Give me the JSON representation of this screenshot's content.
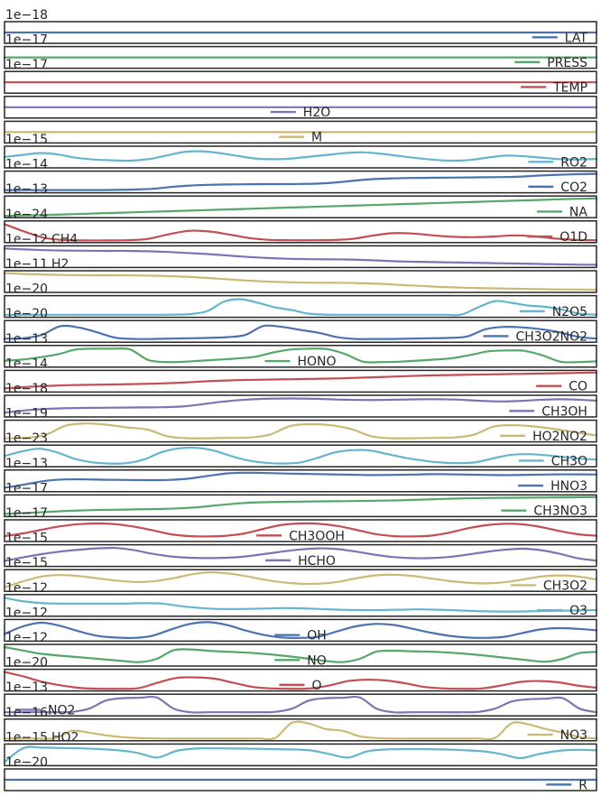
{
  "chart_data": {
    "type": "line",
    "xlim": [
      0,
      1
    ],
    "grid": false,
    "panels": [
      {
        "name": "LAT",
        "offset": "1e−18",
        "color": "#4c72b0",
        "legend_loc": "right",
        "y": [
          0.5,
          0.5
        ]
      },
      {
        "name": "PRESS",
        "offset": "1e−17",
        "color": "#55a868",
        "legend_loc": "right",
        "y": [
          0.5,
          0.5
        ]
      },
      {
        "name": "TEMP",
        "offset": "1e−17",
        "color": "#c44e52",
        "legend_loc": "right",
        "y": [
          0.5,
          0.5
        ]
      },
      {
        "name": "H2O",
        "offset": "",
        "color": "#8172b2",
        "legend_loc": "center",
        "y": [
          0.5,
          0.5
        ]
      },
      {
        "name": "M",
        "offset": "",
        "color": "#ccb974",
        "legend_loc": "center",
        "y": [
          0.5,
          0.5
        ]
      },
      {
        "name": "RO2",
        "offset": "1e−15",
        "color": "#64b5cd",
        "legend_loc": "right",
        "y": [
          0.5,
          0.62,
          0.72,
          0.64,
          0.46,
          0.36,
          0.32,
          0.3,
          0.38,
          0.58,
          0.78,
          0.82,
          0.72,
          0.56,
          0.42,
          0.38,
          0.42,
          0.52,
          0.62,
          0.72,
          0.76,
          0.68,
          0.56,
          0.44,
          0.34,
          0.3,
          0.34,
          0.48,
          0.58,
          0.54,
          0.46,
          0.38,
          0.36,
          0.4
        ]
      },
      {
        "name": "CO2",
        "offset": "1e−14",
        "color": "#4c72b0",
        "legend_loc": "right",
        "y": [
          0.05,
          0.05,
          0.05,
          0.05,
          0.05,
          0.05,
          0.06,
          0.08,
          0.12,
          0.22,
          0.3,
          0.34,
          0.36,
          0.37,
          0.38,
          0.38,
          0.39,
          0.41,
          0.48,
          0.58,
          0.66,
          0.7,
          0.72,
          0.73,
          0.74,
          0.75,
          0.76,
          0.77,
          0.8,
          0.86,
          0.9,
          0.93,
          0.95
        ]
      },
      {
        "name": "NA",
        "offset": "1e−13",
        "color": "#55a868",
        "legend_loc": "right",
        "y": [
          0.0,
          0.03,
          0.06,
          0.1,
          0.14,
          0.18,
          0.22,
          0.26,
          0.3,
          0.34,
          0.38,
          0.42,
          0.46,
          0.5,
          0.54,
          0.58,
          0.62,
          0.66,
          0.7,
          0.74,
          0.78,
          0.82,
          0.86,
          0.9,
          0.94,
          0.97
        ]
      },
      {
        "name": "O1D",
        "offset": "1e−24",
        "color": "#c44e52",
        "legend_loc": "right",
        "y": [
          0.92,
          0.5,
          0.15,
          0.04,
          0.02,
          0.02,
          0.03,
          0.1,
          0.35,
          0.55,
          0.52,
          0.35,
          0.15,
          0.05,
          0.03,
          0.03,
          0.04,
          0.1,
          0.28,
          0.42,
          0.4,
          0.3,
          0.22,
          0.2,
          0.24,
          0.3,
          0.24,
          0.12,
          0.05,
          0.03
        ]
      },
      {
        "name": "CH4",
        "offset": "1e−12",
        "color": "#8172b2",
        "legend_loc": "none",
        "y": [
          0.95,
          0.9,
          0.86,
          0.84,
          0.83,
          0.82,
          0.82,
          0.8,
          0.76,
          0.7,
          0.64,
          0.56,
          0.48,
          0.42,
          0.38,
          0.36,
          0.35,
          0.34,
          0.3,
          0.25,
          0.22,
          0.2,
          0.18,
          0.16,
          0.14,
          0.12,
          0.1,
          0.08,
          0.06,
          0.05
        ]
      },
      {
        "name": "H2",
        "offset": "1e−11",
        "color": "#ccb974",
        "legend_loc": "none",
        "y": [
          0.97,
          0.92,
          0.88,
          0.86,
          0.85,
          0.85,
          0.84,
          0.82,
          0.78,
          0.72,
          0.64,
          0.56,
          0.5,
          0.46,
          0.44,
          0.43,
          0.42,
          0.38,
          0.32,
          0.26,
          0.2,
          0.16,
          0.13,
          0.11,
          0.09,
          0.07,
          0.06,
          0.05
        ]
      },
      {
        "name": "N2O5",
        "offset": "1e−20",
        "color": "#64b5cd",
        "legend_loc": "right",
        "y": [
          0.04,
          0.04,
          0.04,
          0.04,
          0.04,
          0.04,
          0.04,
          0.04,
          0.04,
          0.04,
          0.05,
          0.08,
          0.25,
          0.78,
          0.9,
          0.7,
          0.45,
          0.3,
          0.1,
          0.05,
          0.04,
          0.04,
          0.04,
          0.04,
          0.04,
          0.04,
          0.04,
          0.05,
          0.45,
          0.8,
          0.7,
          0.55,
          0.48,
          0.32,
          0.1,
          0.05
        ]
      },
      {
        "name": "CH3O2NO2",
        "offset": "1e−20",
        "color": "#4c72b0",
        "legend_loc": "right",
        "y": [
          0.1,
          0.12,
          0.3,
          0.78,
          0.72,
          0.45,
          0.15,
          0.08,
          0.08,
          0.1,
          0.12,
          0.14,
          0.18,
          0.3,
          0.8,
          0.75,
          0.58,
          0.42,
          0.18,
          0.08,
          0.08,
          0.08,
          0.1,
          0.12,
          0.14,
          0.22,
          0.62,
          0.75,
          0.72,
          0.62,
          0.45,
          0.2,
          0.1
        ]
      },
      {
        "name": "HONO",
        "offset": "1e−13",
        "color": "#55a868",
        "legend_loc": "center",
        "y": [
          0.25,
          0.32,
          0.45,
          0.62,
          0.88,
          0.92,
          0.92,
          0.88,
          0.3,
          0.18,
          0.2,
          0.26,
          0.32,
          0.38,
          0.48,
          0.72,
          0.88,
          0.92,
          0.9,
          0.62,
          0.2,
          0.18,
          0.2,
          0.26,
          0.32,
          0.4,
          0.58,
          0.78,
          0.82,
          0.8,
          0.55,
          0.2,
          0.18,
          0.22
        ]
      },
      {
        "name": "CO",
        "offset": "1e−14",
        "color": "#c44e52",
        "legend_loc": "right",
        "y": [
          0.1,
          0.18,
          0.24,
          0.28,
          0.3,
          0.32,
          0.34,
          0.36,
          0.4,
          0.46,
          0.52,
          0.56,
          0.58,
          0.6,
          0.62,
          0.64,
          0.66,
          0.7,
          0.74,
          0.78,
          0.82,
          0.84,
          0.86,
          0.88,
          0.9,
          0.92,
          0.94,
          0.96,
          0.98
        ]
      },
      {
        "name": "CH3OH",
        "offset": "1e−18",
        "color": "#8172b2",
        "legend_loc": "right",
        "y": [
          0.14,
          0.26,
          0.34,
          0.38,
          0.4,
          0.41,
          0.42,
          0.43,
          0.44,
          0.48,
          0.6,
          0.74,
          0.84,
          0.9,
          0.92,
          0.92,
          0.9,
          0.86,
          0.84,
          0.84,
          0.86,
          0.88,
          0.88,
          0.86,
          0.8,
          0.76,
          0.78,
          0.84,
          0.88,
          0.86,
          0.8
        ]
      },
      {
        "name": "HO2NO2",
        "offset": "1e−19",
        "color": "#ccb974",
        "legend_loc": "right",
        "y": [
          0.1,
          0.12,
          0.28,
          0.8,
          0.92,
          0.85,
          0.7,
          0.58,
          0.2,
          0.1,
          0.1,
          0.12,
          0.14,
          0.3,
          0.78,
          0.88,
          0.82,
          0.6,
          0.2,
          0.1,
          0.1,
          0.12,
          0.14,
          0.3,
          0.76,
          0.82,
          0.75,
          0.6,
          0.42,
          0.25
        ]
      },
      {
        "name": "CH3O",
        "offset": "1e−23",
        "color": "#64b5cd",
        "legend_loc": "right",
        "y": [
          0.5,
          0.75,
          0.9,
          0.7,
          0.35,
          0.15,
          0.08,
          0.1,
          0.3,
          0.7,
          0.92,
          0.95,
          0.8,
          0.5,
          0.25,
          0.12,
          0.08,
          0.14,
          0.4,
          0.7,
          0.82,
          0.8,
          0.6,
          0.4,
          0.25,
          0.14,
          0.1,
          0.14,
          0.35,
          0.55,
          0.6,
          0.55,
          0.45,
          0.35,
          0.3
        ]
      },
      {
        "name": "HNO3",
        "offset": "1e−13",
        "color": "#4c72b0",
        "legend_loc": "right",
        "y": [
          0.12,
          0.3,
          0.5,
          0.58,
          0.58,
          0.56,
          0.55,
          0.54,
          0.55,
          0.62,
          0.78,
          0.92,
          0.95,
          0.93,
          0.9,
          0.88,
          0.86,
          0.84,
          0.82,
          0.83,
          0.85,
          0.87,
          0.86,
          0.84,
          0.82,
          0.82,
          0.84,
          0.86,
          0.86,
          0.85
        ]
      },
      {
        "name": "CH3NO3",
        "offset": "1e−17",
        "color": "#55a868",
        "legend_loc": "right",
        "y": [
          0.05,
          0.1,
          0.16,
          0.22,
          0.26,
          0.28,
          0.3,
          0.32,
          0.36,
          0.44,
          0.56,
          0.66,
          0.7,
          0.72,
          0.74,
          0.75,
          0.76,
          0.78,
          0.8,
          0.84,
          0.88,
          0.91,
          0.93,
          0.94,
          0.95,
          0.96,
          0.97,
          0.98
        ]
      },
      {
        "name": "CH3OOH",
        "offset": "1e−17",
        "color": "#c44e52",
        "legend_loc": "center",
        "y": [
          0.2,
          0.35,
          0.55,
          0.74,
          0.86,
          0.9,
          0.86,
          0.72,
          0.52,
          0.3,
          0.2,
          0.18,
          0.22,
          0.35,
          0.6,
          0.82,
          0.9,
          0.88,
          0.76,
          0.55,
          0.32,
          0.2,
          0.18,
          0.22,
          0.38,
          0.62,
          0.8,
          0.88,
          0.85,
          0.7,
          0.48,
          0.3,
          0.22
        ]
      },
      {
        "name": "HCHO",
        "offset": "1e−15",
        "color": "#8172b2",
        "legend_loc": "center",
        "y": [
          0.2,
          0.4,
          0.58,
          0.72,
          0.82,
          0.9,
          0.92,
          0.8,
          0.6,
          0.45,
          0.38,
          0.36,
          0.38,
          0.45,
          0.58,
          0.72,
          0.84,
          0.9,
          0.86,
          0.72,
          0.55,
          0.42,
          0.36,
          0.36,
          0.42,
          0.55,
          0.7,
          0.82,
          0.88,
          0.8,
          0.6,
          0.35,
          0.22
        ]
      },
      {
        "name": "CH3O2",
        "offset": "1e−15",
        "color": "#ccb974",
        "legend_loc": "right",
        "y": [
          0.12,
          0.45,
          0.72,
          0.8,
          0.75,
          0.62,
          0.5,
          0.42,
          0.45,
          0.6,
          0.82,
          0.95,
          0.9,
          0.75,
          0.55,
          0.4,
          0.32,
          0.32,
          0.42,
          0.62,
          0.78,
          0.82,
          0.76,
          0.62,
          0.48,
          0.38,
          0.34,
          0.4,
          0.55,
          0.72,
          0.78,
          0.72,
          0.55
        ]
      },
      {
        "name": "O3",
        "offset": "1e−12",
        "color": "#64b5cd",
        "legend_loc": "right",
        "y": [
          0.92,
          0.72,
          0.62,
          0.6,
          0.6,
          0.6,
          0.6,
          0.62,
          0.6,
          0.45,
          0.35,
          0.3,
          0.3,
          0.32,
          0.35,
          0.34,
          0.3,
          0.26,
          0.24,
          0.24,
          0.26,
          0.28,
          0.26,
          0.22,
          0.18,
          0.16,
          0.16,
          0.18,
          0.2,
          0.22,
          0.24
        ]
      },
      {
        "name": "OH",
        "offset": "1e−12",
        "color": "#4c72b0",
        "legend_loc": "center",
        "y": [
          0.3,
          0.72,
          0.92,
          0.75,
          0.45,
          0.2,
          0.1,
          0.08,
          0.2,
          0.55,
          0.85,
          0.95,
          0.8,
          0.5,
          0.25,
          0.1,
          0.08,
          0.15,
          0.45,
          0.72,
          0.85,
          0.8,
          0.6,
          0.38,
          0.2,
          0.1,
          0.08,
          0.14,
          0.35,
          0.55,
          0.62,
          0.58,
          0.5
        ]
      },
      {
        "name": "NO",
        "offset": "1e−12",
        "color": "#55a868",
        "legend_loc": "center",
        "y": [
          0.95,
          0.78,
          0.6,
          0.5,
          0.42,
          0.34,
          0.26,
          0.18,
          0.12,
          0.3,
          0.78,
          0.82,
          0.75,
          0.7,
          0.66,
          0.6,
          0.52,
          0.42,
          0.3,
          0.18,
          0.12,
          0.3,
          0.7,
          0.75,
          0.72,
          0.7,
          0.66,
          0.6,
          0.52,
          0.42,
          0.32,
          0.22,
          0.14,
          0.3,
          0.62,
          0.68
        ]
      },
      {
        "name": "O",
        "offset": "1e−20",
        "color": "#c44e52",
        "legend_loc": "center",
        "y": [
          0.95,
          0.7,
          0.4,
          0.2,
          0.06,
          0.02,
          0.02,
          0.05,
          0.35,
          0.62,
          0.65,
          0.58,
          0.35,
          0.12,
          0.04,
          0.02,
          0.04,
          0.2,
          0.45,
          0.52,
          0.48,
          0.32,
          0.12,
          0.04,
          0.02,
          0.04,
          0.2,
          0.4,
          0.45,
          0.38,
          0.2,
          0.08
        ]
      },
      {
        "name": "NO2",
        "offset": "1e−13",
        "color": "#8172b2",
        "legend_loc": "left",
        "y": [
          0.1,
          0.1,
          0.1,
          0.1,
          0.12,
          0.3,
          0.75,
          0.88,
          0.9,
          0.92,
          0.3,
          0.1,
          0.1,
          0.1,
          0.1,
          0.1,
          0.12,
          0.3,
          0.75,
          0.88,
          0.9,
          0.92,
          0.3,
          0.1,
          0.1,
          0.1,
          0.1,
          0.1,
          0.12,
          0.3,
          0.7,
          0.82,
          0.85,
          0.88,
          0.3,
          0.1
        ]
      },
      {
        "name": "NO3",
        "offset": "1e−16",
        "color": "#ccb974",
        "legend_loc": "right",
        "y": [
          0.02,
          0.02,
          0.02,
          0.05,
          0.45,
          0.35,
          0.2,
          0.1,
          0.05,
          0.03,
          0.02,
          0.02,
          0.02,
          0.02,
          0.02,
          0.03,
          0.05,
          0.9,
          0.85,
          0.55,
          0.45,
          0.15,
          0.05,
          0.02,
          0.02,
          0.02,
          0.02,
          0.02,
          0.03,
          0.05,
          0.88,
          0.8,
          0.55,
          0.35,
          0.1,
          0.03
        ]
      },
      {
        "name": "HO2",
        "offset": "1e−15",
        "color": "#64b5cd",
        "legend_loc": "none",
        "y": [
          0.1,
          0.88,
          0.9,
          0.88,
          0.86,
          0.82,
          0.75,
          0.6,
          0.35,
          0.72,
          0.85,
          0.86,
          0.85,
          0.84,
          0.82,
          0.8,
          0.75,
          0.55,
          0.35,
          0.7,
          0.8,
          0.82,
          0.82,
          0.8,
          0.76,
          0.7,
          0.55,
          0.32,
          0.55,
          0.72,
          0.78,
          0.75
        ]
      },
      {
        "name": "R",
        "offset": "1e−20",
        "color": "#4c72b0",
        "legend_loc": "right",
        "y": [
          0.5,
          0.5
        ]
      }
    ]
  }
}
